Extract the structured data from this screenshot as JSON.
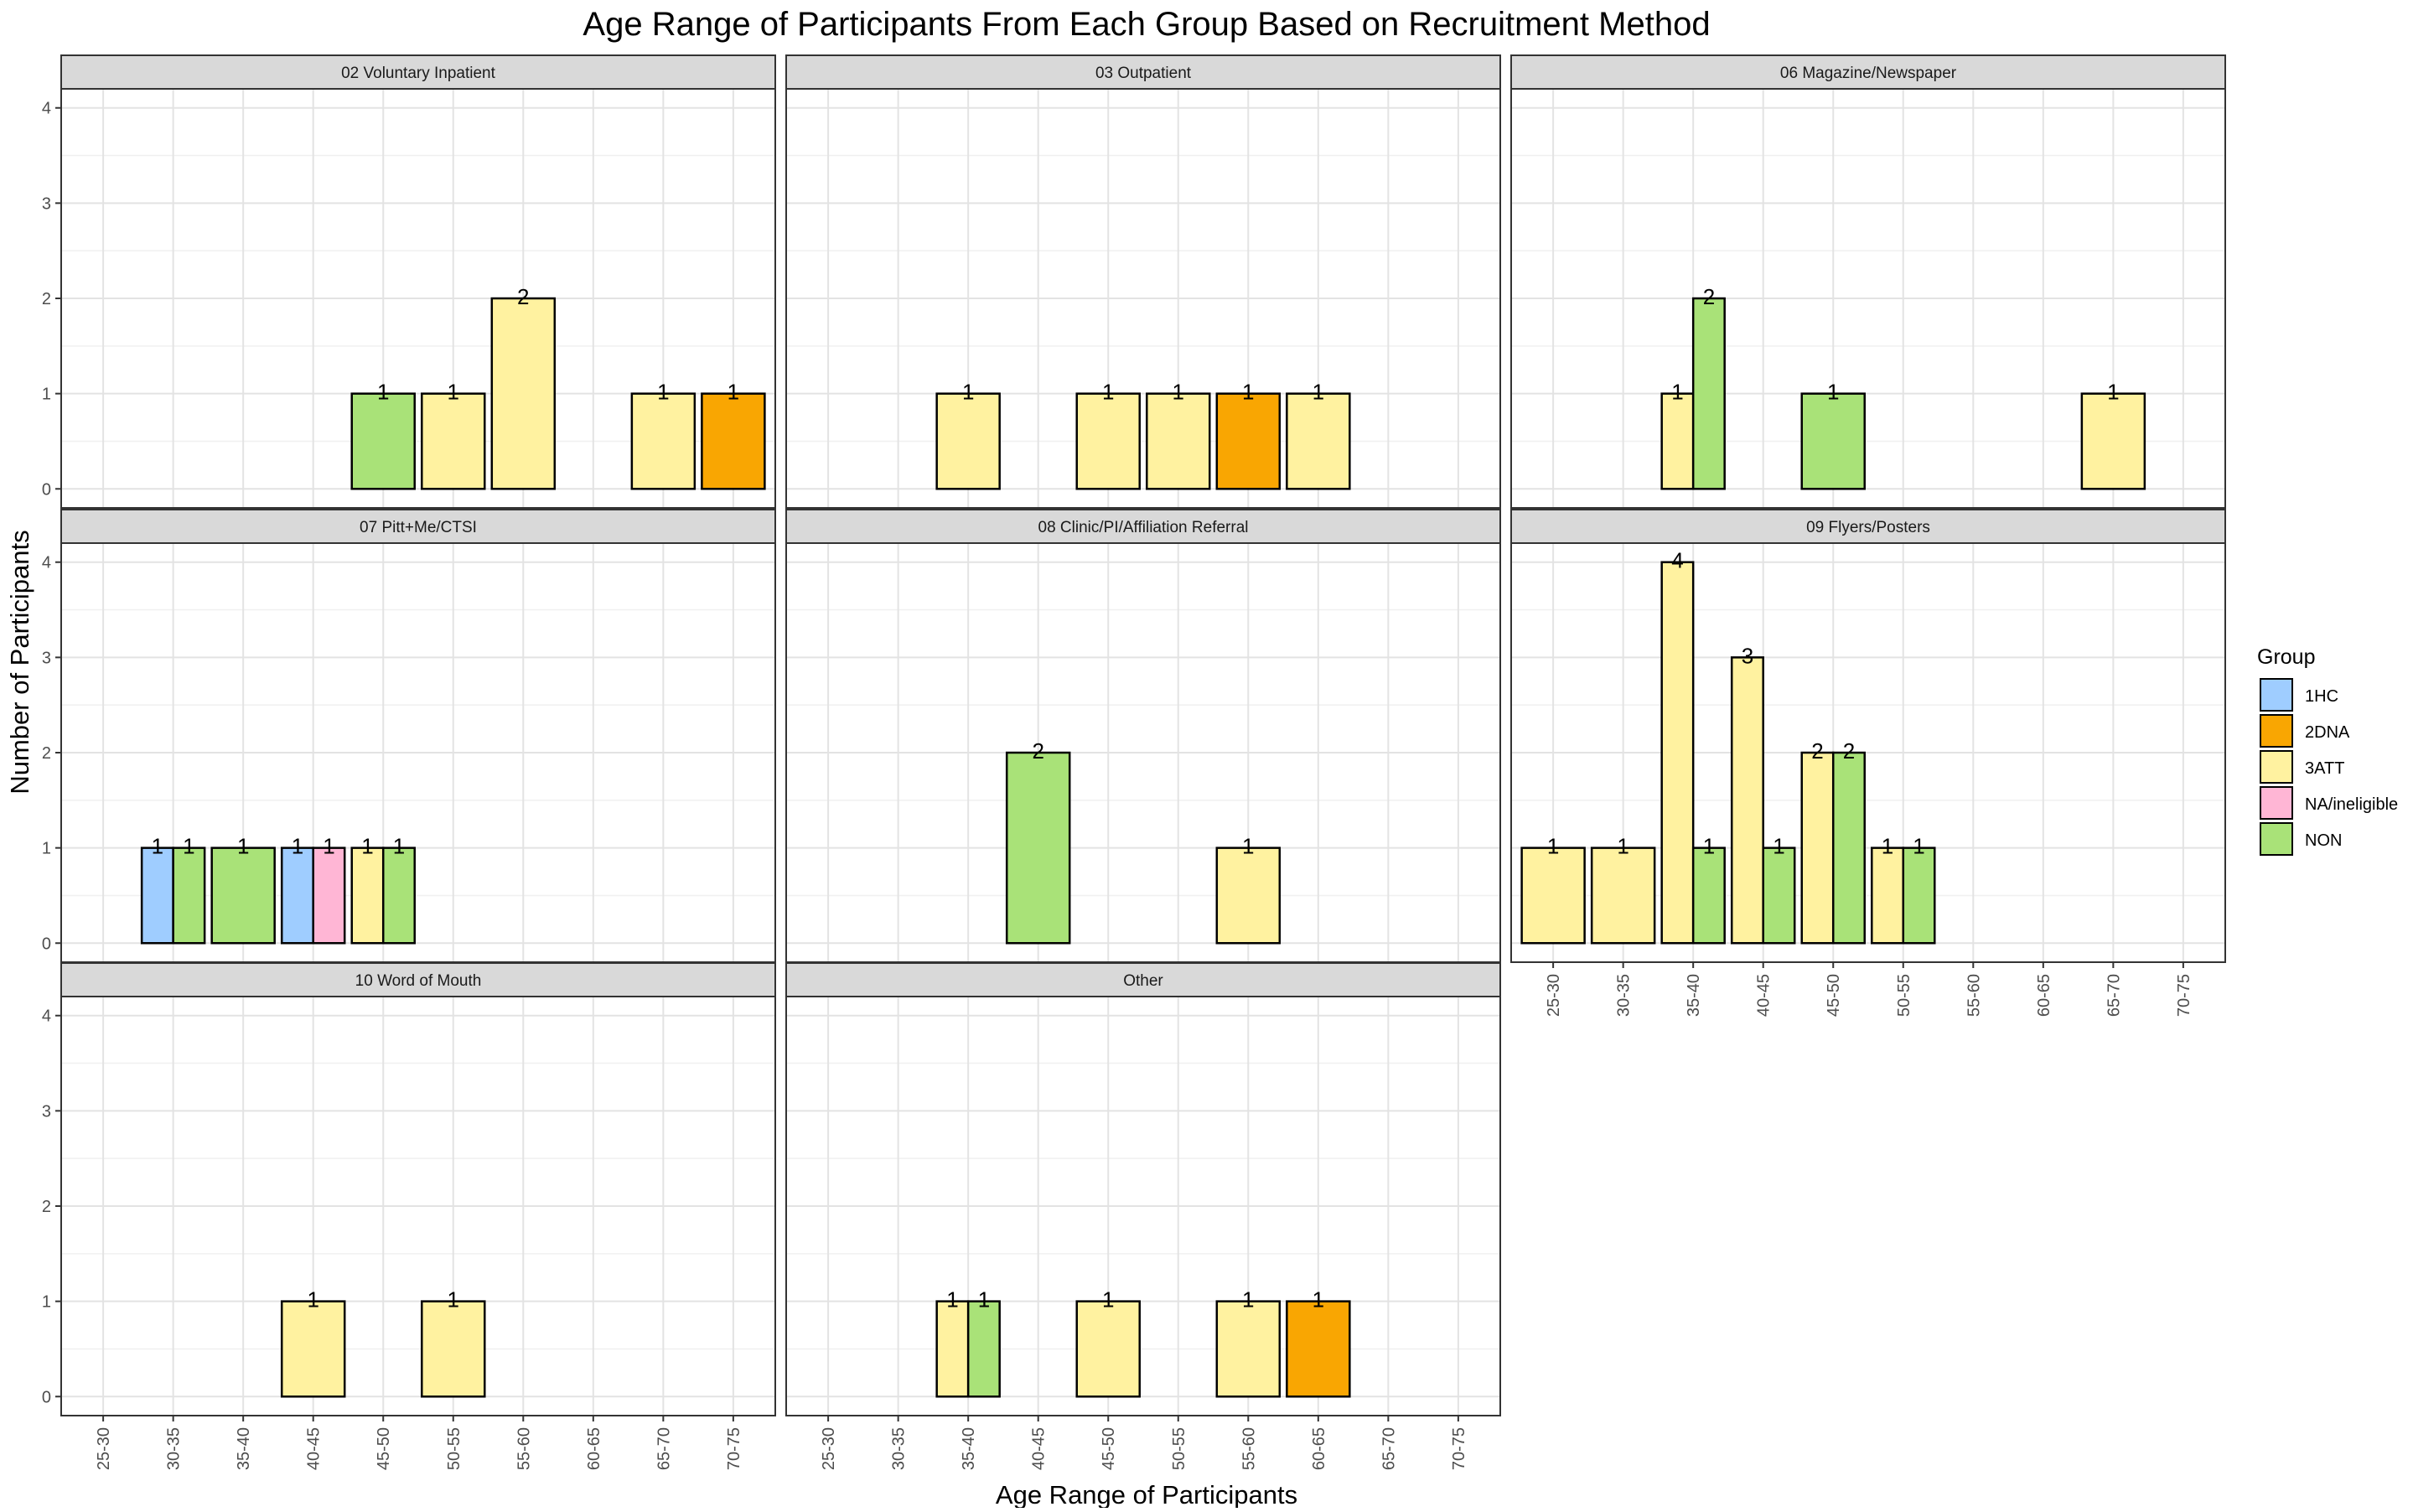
{
  "chart_data": {
    "type": "bar",
    "title": "Age Range of Participants From Each Group Based on Recruitment Method",
    "xlabel": "Age Range of Participants",
    "ylabel": "Number of Participants",
    "categories": [
      "25-30",
      "30-35",
      "35-40",
      "40-45",
      "45-50",
      "50-55",
      "55-60",
      "60-65",
      "65-70",
      "70-75"
    ],
    "ylim": [
      0,
      4
    ],
    "yticks": [
      "0",
      "1",
      "2",
      "3",
      "4"
    ],
    "grid": true,
    "legend": {
      "title": "Group",
      "position": "right",
      "items": [
        {
          "name": "1HC",
          "color": "#9fcdff"
        },
        {
          "name": "2DNA",
          "color": "#f9a602"
        },
        {
          "name": "3ATT",
          "color": "#fff2a0"
        },
        {
          "name": "NA/ineligible",
          "color": "#ffb6d5"
        },
        {
          "name": "NON",
          "color": "#a9e278"
        }
      ]
    },
    "panels": [
      {
        "title": "02 Voluntary Inpatient",
        "bars": [
          {
            "category": "45-50",
            "groups": [
              {
                "group": "NON",
                "value": 1
              }
            ]
          },
          {
            "category": "50-55",
            "groups": [
              {
                "group": "3ATT",
                "value": 1
              }
            ]
          },
          {
            "category": "55-60",
            "groups": [
              {
                "group": "3ATT",
                "value": 2
              }
            ]
          },
          {
            "category": "65-70",
            "groups": [
              {
                "group": "3ATT",
                "value": 1
              }
            ]
          },
          {
            "category": "70-75",
            "groups": [
              {
                "group": "2DNA",
                "value": 1
              }
            ]
          }
        ]
      },
      {
        "title": "03 Outpatient",
        "bars": [
          {
            "category": "35-40",
            "groups": [
              {
                "group": "3ATT",
                "value": 1
              }
            ]
          },
          {
            "category": "45-50",
            "groups": [
              {
                "group": "3ATT",
                "value": 1
              }
            ]
          },
          {
            "category": "50-55",
            "groups": [
              {
                "group": "3ATT",
                "value": 1
              }
            ]
          },
          {
            "category": "55-60",
            "groups": [
              {
                "group": "2DNA",
                "value": 1
              }
            ]
          },
          {
            "category": "60-65",
            "groups": [
              {
                "group": "3ATT",
                "value": 1
              }
            ]
          }
        ]
      },
      {
        "title": "06 Magazine/Newspaper",
        "bars": [
          {
            "category": "35-40",
            "groups": [
              {
                "group": "3ATT",
                "value": 1
              },
              {
                "group": "NON",
                "value": 2
              }
            ]
          },
          {
            "category": "45-50",
            "groups": [
              {
                "group": "NON",
                "value": 1
              }
            ]
          },
          {
            "category": "65-70",
            "groups": [
              {
                "group": "3ATT",
                "value": 1
              }
            ]
          }
        ]
      },
      {
        "title": "07 Pitt+Me/CTSI",
        "bars": [
          {
            "category": "30-35",
            "groups": [
              {
                "group": "1HC",
                "value": 1
              },
              {
                "group": "NON",
                "value": 1
              }
            ]
          },
          {
            "category": "35-40",
            "groups": [
              {
                "group": "NON",
                "value": 1
              }
            ]
          },
          {
            "category": "40-45",
            "groups": [
              {
                "group": "1HC",
                "value": 1
              },
              {
                "group": "NA/ineligible",
                "value": 1
              }
            ]
          },
          {
            "category": "45-50",
            "groups": [
              {
                "group": "3ATT",
                "value": 1
              },
              {
                "group": "NON",
                "value": 1
              }
            ]
          }
        ]
      },
      {
        "title": "08 Clinic/PI/Affiliation Referral",
        "bars": [
          {
            "category": "40-45",
            "groups": [
              {
                "group": "NON",
                "value": 2
              }
            ]
          },
          {
            "category": "55-60",
            "groups": [
              {
                "group": "3ATT",
                "value": 1
              }
            ]
          }
        ]
      },
      {
        "title": "09 Flyers/Posters",
        "bars": [
          {
            "category": "25-30",
            "groups": [
              {
                "group": "3ATT",
                "value": 1
              }
            ]
          },
          {
            "category": "30-35",
            "groups": [
              {
                "group": "3ATT",
                "value": 1
              }
            ]
          },
          {
            "category": "35-40",
            "groups": [
              {
                "group": "3ATT",
                "value": 4
              },
              {
                "group": "NON",
                "value": 1
              }
            ]
          },
          {
            "category": "40-45",
            "groups": [
              {
                "group": "3ATT",
                "value": 3
              },
              {
                "group": "NON",
                "value": 1
              }
            ]
          },
          {
            "category": "45-50",
            "groups": [
              {
                "group": "3ATT",
                "value": 2
              },
              {
                "group": "NON",
                "value": 2
              }
            ]
          },
          {
            "category": "50-55",
            "groups": [
              {
                "group": "3ATT",
                "value": 1
              },
              {
                "group": "NON",
                "value": 1
              }
            ]
          }
        ]
      },
      {
        "title": "10 Word of Mouth",
        "bars": [
          {
            "category": "40-45",
            "groups": [
              {
                "group": "3ATT",
                "value": 1
              }
            ]
          },
          {
            "category": "50-55",
            "groups": [
              {
                "group": "3ATT",
                "value": 1
              }
            ]
          }
        ]
      },
      {
        "title": "Other",
        "bars": [
          {
            "category": "35-40",
            "groups": [
              {
                "group": "3ATT",
                "value": 1
              },
              {
                "group": "NON",
                "value": 1
              }
            ]
          },
          {
            "category": "45-50",
            "groups": [
              {
                "group": "3ATT",
                "value": 1
              }
            ]
          },
          {
            "category": "55-60",
            "groups": [
              {
                "group": "3ATT",
                "value": 1
              }
            ]
          },
          {
            "category": "60-65",
            "groups": [
              {
                "group": "2DNA",
                "value": 1
              }
            ]
          }
        ]
      }
    ]
  }
}
